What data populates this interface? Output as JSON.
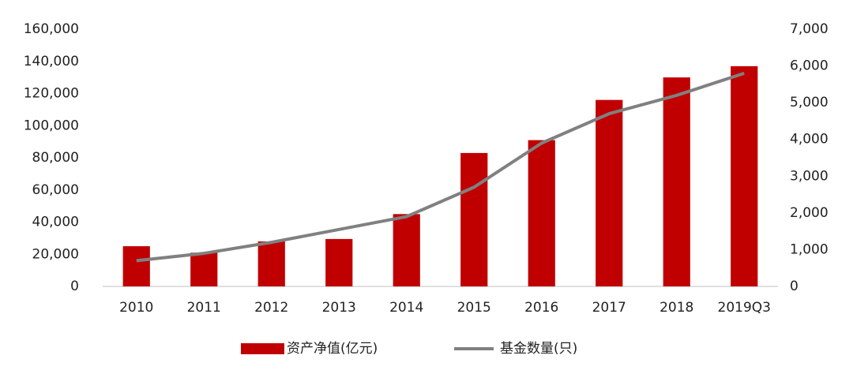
{
  "chart_data": {
    "type": "bar",
    "categories": [
      "2010",
      "2011",
      "2012",
      "2013",
      "2014",
      "2015",
      "2016",
      "2017",
      "2018",
      "2019Q3"
    ],
    "series": [
      {
        "name": "资产净值(亿元)",
        "type": "bar",
        "color": "#c00000",
        "values": [
          25000,
          21000,
          28000,
          29500,
          45000,
          83000,
          91000,
          116000,
          130000,
          137000
        ]
      },
      {
        "name": "基金数量(只)",
        "type": "line",
        "axis": "y2",
        "color": "#808080",
        "values": [
          700,
          900,
          1200,
          1550,
          1900,
          2700,
          3900,
          4700,
          5200,
          5800
        ]
      }
    ],
    "ylim": [
      0,
      160000
    ],
    "yticks": [
      0,
      {
        "value": 20000,
        "label": "20,000"
      },
      {
        "value": 40000,
        "label": "40,000"
      },
      {
        "value": 60000,
        "label": "60,000"
      },
      {
        "value": 80000,
        "label": "80,000"
      },
      {
        "value": 100000,
        "label": "100,000"
      },
      {
        "value": 120000,
        "label": "120,000"
      },
      {
        "value": 140000,
        "label": "140,000"
      },
      {
        "value": 160000,
        "label": "160,000"
      }
    ],
    "y2lim": [
      0,
      7000
    ],
    "y2ticks": [
      0,
      {
        "value": 1000,
        "label": "1,000"
      },
      {
        "value": 2000,
        "label": "2,000"
      },
      {
        "value": 3000,
        "label": "3,000"
      },
      {
        "value": 4000,
        "label": "4,000"
      },
      {
        "value": 5000,
        "label": "5,000"
      },
      {
        "value": 6000,
        "label": "6,000"
      },
      {
        "value": 7000,
        "label": "7,000"
      }
    ],
    "grid": false,
    "legend": "bottom"
  }
}
